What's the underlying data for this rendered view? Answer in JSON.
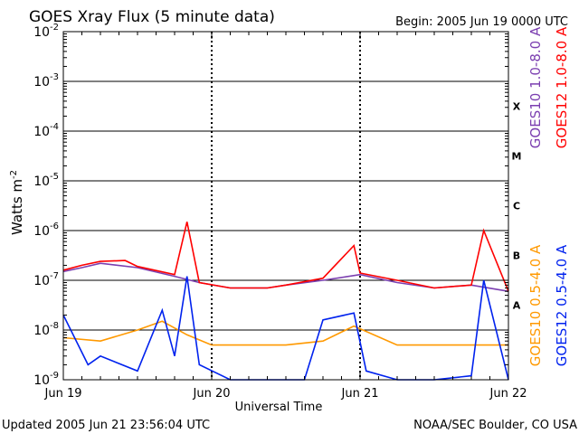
{
  "chart_data": {
    "type": "line",
    "title": "GOES Xray Flux (5 minute data)",
    "begin": "Begin:  2005 Jun 19 0000 UTC",
    "xlabel": "Universal Time",
    "ylabel": "Watts m",
    "ylabel_sup": "-2",
    "updated": "Updated 2005 Jun 21 23:56:04 UTC",
    "credit": "NOAA/SEC Boulder, CO USA",
    "y_scale": "log",
    "ylim": [
      1e-09,
      0.01
    ],
    "xlim": [
      "2005-06-19 00:00",
      "2005-06-22 00:00"
    ],
    "y_ticks": [
      {
        "base": "10",
        "exp": "-2",
        "value": 0.01
      },
      {
        "base": "10",
        "exp": "-3",
        "value": 0.001
      },
      {
        "base": "10",
        "exp": "-4",
        "value": 0.0001
      },
      {
        "base": "10",
        "exp": "-5",
        "value": 1e-05
      },
      {
        "base": "10",
        "exp": "-6",
        "value": 1e-06
      },
      {
        "base": "10",
        "exp": "-7",
        "value": 1e-07
      },
      {
        "base": "10",
        "exp": "-8",
        "value": 1e-08
      },
      {
        "base": "10",
        "exp": "-9",
        "value": 1e-09
      }
    ],
    "x_ticks": [
      "Jun 19",
      "Jun 20",
      "Jun 21",
      "Jun 22"
    ],
    "flare_classes": [
      {
        "label": "X",
        "low": 0.0001
      },
      {
        "label": "M",
        "low": 1e-05
      },
      {
        "label": "C",
        "low": 1e-06
      },
      {
        "label": "B",
        "low": 1e-07
      },
      {
        "label": "A",
        "low": 1e-08
      }
    ],
    "series": [
      {
        "name": "GOES10 1.0-8.0 A",
        "color": "#7b3fb0",
        "x": [
          "2005-06-19 00:00",
          "2005-06-19 03:00",
          "2005-06-19 06:00",
          "2005-06-19 12:00",
          "2005-06-19 18:00",
          "2005-06-19 22:00",
          "2005-06-20 03:00",
          "2005-06-20 09:00",
          "2005-06-20 12:00",
          "2005-06-20 18:00",
          "2005-06-21 00:00",
          "2005-06-21 06:00",
          "2005-06-21 12:00",
          "2005-06-21 18:00",
          "2005-06-22 00:00"
        ],
        "y": [
          1.5e-07,
          1.8e-07,
          2.2e-07,
          1.8e-07,
          1.2e-07,
          9e-08,
          7e-08,
          7e-08,
          8e-08,
          1e-07,
          1.3e-07,
          9e-08,
          7e-08,
          8e-08,
          6e-08
        ]
      },
      {
        "name": "GOES12 1.0-8.0 A",
        "color": "#ff0000",
        "x": [
          "2005-06-19 00:00",
          "2005-06-19 03:00",
          "2005-06-19 06:00",
          "2005-06-19 10:00",
          "2005-06-19 12:00",
          "2005-06-19 18:00",
          "2005-06-19 20:00",
          "2005-06-19 22:00",
          "2005-06-20 03:00",
          "2005-06-20 09:00",
          "2005-06-20 12:00",
          "2005-06-20 18:00",
          "2005-06-20 23:00",
          "2005-06-21 00:00",
          "2005-06-21 06:00",
          "2005-06-21 12:00",
          "2005-06-21 18:00",
          "2005-06-21 20:00",
          "2005-06-22 00:00"
        ],
        "y": [
          1.6e-07,
          2e-07,
          2.4e-07,
          2.5e-07,
          1.9e-07,
          1.3e-07,
          1.5e-06,
          9e-08,
          7e-08,
          7e-08,
          8e-08,
          1.1e-07,
          5e-07,
          1.4e-07,
          1e-07,
          7e-08,
          8e-08,
          1e-06,
          6e-08
        ]
      },
      {
        "name": "GOES10 0.5-4.0 A",
        "color": "#ff9900",
        "x": [
          "2005-06-19 00:00",
          "2005-06-19 06:00",
          "2005-06-19 12:00",
          "2005-06-19 16:00",
          "2005-06-19 20:00",
          "2005-06-20 00:00",
          "2005-06-20 06:00",
          "2005-06-20 12:00",
          "2005-06-20 18:00",
          "2005-06-20 23:00",
          "2005-06-21 06:00",
          "2005-06-21 12:00",
          "2005-06-21 18:00",
          "2005-06-22 00:00"
        ],
        "y": [
          7e-09,
          6e-09,
          1e-08,
          1.5e-08,
          8e-09,
          5e-09,
          5e-09,
          5e-09,
          6e-09,
          1.2e-08,
          5e-09,
          5e-09,
          5e-09,
          5e-09
        ]
      },
      {
        "name": "GOES12 0.5-4.0 A",
        "color": "#0022ee",
        "x": [
          "2005-06-19 00:00",
          "2005-06-19 04:00",
          "2005-06-19 06:00",
          "2005-06-19 12:00",
          "2005-06-19 16:00",
          "2005-06-19 18:00",
          "2005-06-19 20:00",
          "2005-06-19 22:00",
          "2005-06-20 03:00",
          "2005-06-20 09:00",
          "2005-06-20 15:00",
          "2005-06-20 18:00",
          "2005-06-20 23:00",
          "2005-06-21 01:00",
          "2005-06-21 06:00",
          "2005-06-21 12:00",
          "2005-06-21 18:00",
          "2005-06-21 20:00",
          "2005-06-22 00:00"
        ],
        "y": [
          2e-08,
          2e-09,
          3e-09,
          1.5e-09,
          2.5e-08,
          3e-09,
          1.2e-07,
          2e-09,
          1e-09,
          1e-09,
          1e-09,
          1.6e-08,
          2.2e-08,
          1.5e-09,
          1e-09,
          1e-09,
          1.2e-09,
          1e-07,
          1e-09
        ]
      }
    ]
  }
}
